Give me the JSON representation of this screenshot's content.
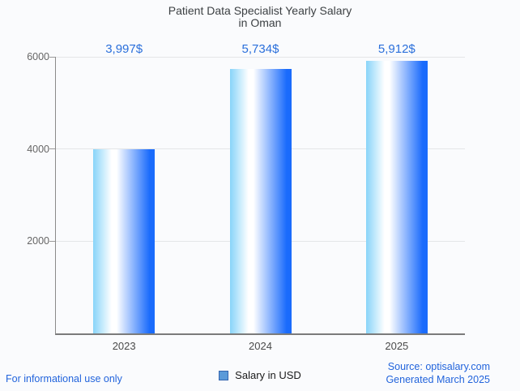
{
  "title": {
    "line1": "Patient Data Specialist Yearly Salary",
    "line2": "in Oman"
  },
  "chart_data": {
    "type": "bar",
    "title": "Patient Data Specialist Yearly Salary in Oman",
    "categories": [
      "2023",
      "2024",
      "2025"
    ],
    "values": [
      3997,
      5734,
      5912
    ],
    "value_labels": [
      "3,997$",
      "5,734$",
      "5,912$"
    ],
    "series": [
      {
        "name": "Salary in USD",
        "values": [
          3997,
          5734,
          5912
        ]
      }
    ],
    "xlabel": "",
    "ylabel": "",
    "ylim": [
      0,
      6000
    ],
    "yticks": [
      2000,
      4000,
      6000
    ],
    "grid": true,
    "legend_position": "bottom"
  },
  "legend": {
    "label": "Salary in USD"
  },
  "footer": {
    "left": "For informational use only",
    "source_line": "Source: optisalary.com",
    "generated_line": "Generated March 2025"
  },
  "colors": {
    "background": "#fafbfd",
    "bar_gradient_left": "#88d4f9",
    "bar_gradient_mid": "#ffffff",
    "bar_gradient_right": "#1a6bfc",
    "value_label_blue": "#2a6fdb",
    "footer_blue": "#2264dc",
    "legend_swatch": "#5b9ad9",
    "legend_swatch_border": "#3465b0",
    "title_gray": "#3c4043",
    "axis_gray": "#8a8a8a",
    "gridline_gray": "#e4e6e8"
  }
}
